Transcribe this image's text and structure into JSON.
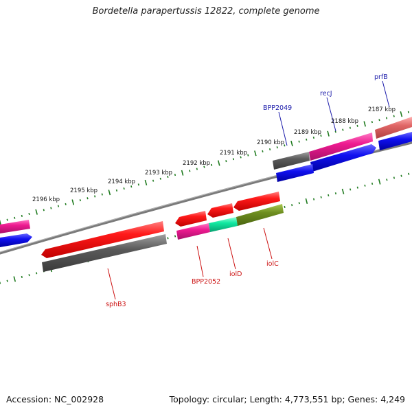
{
  "title": "Bordetella parapertussis 12822, complete genome",
  "footer": {
    "accession": "Accession: NC_002928",
    "summary": "Topology: circular; Length: 4,773,551 bp; Genes: 4,249"
  },
  "ticks": [
    "2187 kbp",
    "2188 kbp",
    "2189 kbp",
    "2190 kbp",
    "2191 kbp",
    "2192 kbp",
    "2193 kbp",
    "2194 kbp",
    "2195 kbp",
    "2196 kbp"
  ],
  "gene_labels": {
    "prfB": "prfB",
    "recJ": "recJ",
    "BPP2049": "BPP2049",
    "BPP2052": "BPP2052",
    "iolD": "iolD",
    "iolC": "iolC",
    "sphB3": "sphB3"
  },
  "colors": {
    "outer_label": "#1a1aaa",
    "inner_label": "#cc1111",
    "backbone": "#777777",
    "tick": "#1e7a1e",
    "red": "#ee1111",
    "magenta": "#e8168e",
    "blue": "#1010e0",
    "gray": "#5a5a5a",
    "salmon": "#e06060",
    "cyan": "#10e0a0",
    "olive": "#6e8e20"
  }
}
